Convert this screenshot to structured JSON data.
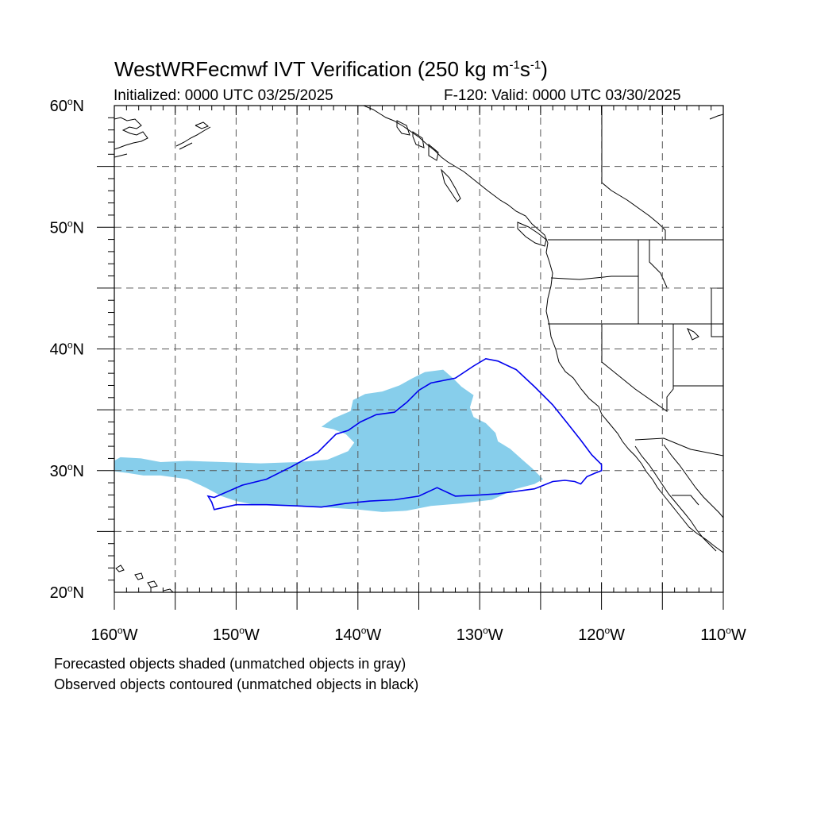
{
  "title": {
    "main": "WestWRFecmwf IVT Verification (250 kg m",
    "exp1": "-1",
    "mid": "s",
    "exp2": "-1",
    "close": ")"
  },
  "subtitle": {
    "initialized": "Initialized: 0000 UTC 03/25/2025",
    "valid": "F-120: Valid: 0000 UTC 03/30/2025"
  },
  "map": {
    "lon_range": [
      -160,
      -110
    ],
    "lat_range": [
      20,
      60
    ],
    "lat_labels": [
      {
        "value": 60,
        "num": "60",
        "suffix": "N"
      },
      {
        "value": 50,
        "num": "50",
        "suffix": "N"
      },
      {
        "value": 40,
        "num": "40",
        "suffix": "N"
      },
      {
        "value": 30,
        "num": "30",
        "suffix": "N"
      },
      {
        "value": 20,
        "num": "20",
        "suffix": "N"
      }
    ],
    "lon_labels": [
      {
        "value": -160,
        "num": "160",
        "suffix": "W"
      },
      {
        "value": -150,
        "num": "150",
        "suffix": "W"
      },
      {
        "value": -140,
        "num": "140",
        "suffix": "W"
      },
      {
        "value": -130,
        "num": "130",
        "suffix": "W"
      },
      {
        "value": -120,
        "num": "120",
        "suffix": "W"
      },
      {
        "value": -110,
        "num": "110",
        "suffix": "W"
      }
    ],
    "gridlines_every_deg": 5,
    "colors": {
      "forecast_fill": "#87ceeb",
      "observed_contour": "#0000ee",
      "coast": "#000000",
      "grid": "#555555"
    },
    "forecast_object": [
      [
        -160.4,
        30.6
      ],
      [
        -159.5,
        31.1
      ],
      [
        -157.8,
        31.0
      ],
      [
        -156.2,
        30.7
      ],
      [
        -154,
        30.8
      ],
      [
        -151,
        30.7
      ],
      [
        -148,
        30.6
      ],
      [
        -145,
        30.7
      ],
      [
        -142.5,
        30.9
      ],
      [
        -140.8,
        31.6
      ],
      [
        -140.3,
        32.3
      ],
      [
        -141.0,
        33.0
      ],
      [
        -142.0,
        33.4
      ],
      [
        -143.0,
        33.6
      ],
      [
        -142.0,
        34.3
      ],
      [
        -140.6,
        34.9
      ],
      [
        -140.4,
        35.8
      ],
      [
        -139.4,
        36.3
      ],
      [
        -138.0,
        36.5
      ],
      [
        -136.6,
        37.0
      ],
      [
        -135.5,
        37.6
      ],
      [
        -134.5,
        38.1
      ],
      [
        -133.0,
        38.3
      ],
      [
        -132.2,
        37.6
      ],
      [
        -131.5,
        36.9
      ],
      [
        -130.5,
        36.2
      ],
      [
        -130.8,
        35.2
      ],
      [
        -130.5,
        34.4
      ],
      [
        -129.5,
        33.9
      ],
      [
        -128.7,
        33.1
      ],
      [
        -128.5,
        32.4
      ],
      [
        -127.5,
        31.8
      ],
      [
        -126.5,
        30.9
      ],
      [
        -125.7,
        30.2
      ],
      [
        -124.8,
        29.3
      ],
      [
        -125.5,
        28.9
      ],
      [
        -127.0,
        28.5
      ],
      [
        -129.0,
        27.6
      ],
      [
        -131.5,
        27.3
      ],
      [
        -134.0,
        27.1
      ],
      [
        -136.0,
        26.7
      ],
      [
        -138.0,
        26.6
      ],
      [
        -140.0,
        26.8
      ],
      [
        -143.0,
        27.0
      ],
      [
        -146.0,
        27.1
      ],
      [
        -148.5,
        27.2
      ],
      [
        -150.0,
        27.5
      ],
      [
        -151.2,
        27.9
      ],
      [
        -152.5,
        28.6
      ],
      [
        -154.0,
        29.3
      ],
      [
        -156.2,
        29.6
      ],
      [
        -157.6,
        29.6
      ],
      [
        -158.9,
        29.8
      ],
      [
        -160.4,
        30.0
      ]
    ],
    "observed_object": [
      [
        -151.8,
        27.8
      ],
      [
        -149.5,
        28.8
      ],
      [
        -147.5,
        29.3
      ],
      [
        -145.5,
        30.3
      ],
      [
        -143.3,
        31.5
      ],
      [
        -141.8,
        33.0
      ],
      [
        -140.8,
        33.3
      ],
      [
        -139.8,
        34.0
      ],
      [
        -138.5,
        34.6
      ],
      [
        -137.0,
        34.8
      ],
      [
        -136.0,
        35.6
      ],
      [
        -135.0,
        36.6
      ],
      [
        -134.0,
        37.2
      ],
      [
        -132.0,
        37.6
      ],
      [
        -130.5,
        38.6
      ],
      [
        -129.5,
        39.2
      ],
      [
        -128.5,
        39.0
      ],
      [
        -127.0,
        38.3
      ],
      [
        -125.5,
        36.9
      ],
      [
        -124.0,
        35.4
      ],
      [
        -122.8,
        33.9
      ],
      [
        -121.7,
        32.5
      ],
      [
        -120.8,
        31.3
      ],
      [
        -120.0,
        30.5
      ],
      [
        -120.0,
        30.0
      ],
      [
        -120.5,
        29.8
      ],
      [
        -121.2,
        29.5
      ],
      [
        -121.7,
        28.9
      ],
      [
        -122.2,
        29.1
      ],
      [
        -123.0,
        29.2
      ],
      [
        -124.0,
        29.1
      ],
      [
        -125.5,
        28.5
      ],
      [
        -127.0,
        28.3
      ],
      [
        -128.5,
        28.1
      ],
      [
        -130.0,
        28.0
      ],
      [
        -132.0,
        27.9
      ],
      [
        -133.5,
        28.6
      ],
      [
        -135.0,
        27.9
      ],
      [
        -137.0,
        27.6
      ],
      [
        -139.0,
        27.5
      ],
      [
        -141.0,
        27.3
      ],
      [
        -143.0,
        27.0
      ],
      [
        -145.0,
        27.1
      ],
      [
        -147.5,
        27.2
      ],
      [
        -150.0,
        27.2
      ],
      [
        -151.8,
        26.8
      ],
      [
        -152.0,
        27.4
      ],
      [
        -152.3,
        27.9
      ]
    ]
  },
  "notes": {
    "line1": "Forecasted objects shaded (unmatched objects in gray)",
    "line2": "Observed objects contoured (unmatched objects in black)"
  }
}
